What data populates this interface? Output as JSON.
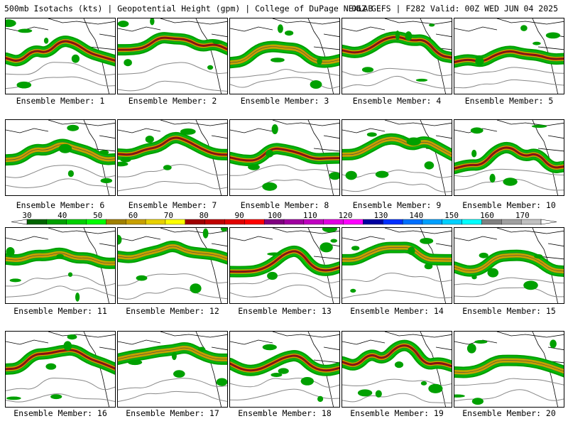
{
  "header": {
    "left": "500mb Isotachs (kts) | Geopotential Height (gpm) | College of DuPage NEXLAB",
    "right": "06Z GEFS | F282 Valid: 00Z WED JUN 04 2025"
  },
  "members": [
    "Ensemble Member: 1",
    "Ensemble Member: 2",
    "Ensemble Member: 3",
    "Ensemble Member: 4",
    "Ensemble Member: 5",
    "Ensemble Member: 6",
    "Ensemble Member: 7",
    "Ensemble Member: 8",
    "Ensemble Member: 9",
    "Ensemble Member: 10",
    "Ensemble Member: 11",
    "Ensemble Member: 12",
    "Ensemble Member: 13",
    "Ensemble Member: 14",
    "Ensemble Member: 15",
    "Ensemble Member: 16",
    "Ensemble Member: 17",
    "Ensemble Member: 18",
    "Ensemble Member: 19",
    "Ensemble Member: 20"
  ],
  "colorbar": {
    "labels": [
      "30",
      "40",
      "50",
      "60",
      "70",
      "80",
      "90",
      "100",
      "110",
      "120",
      "130",
      "140",
      "150",
      "160",
      "170"
    ],
    "colors": [
      "#006400",
      "#00a000",
      "#00d000",
      "#00ff00",
      "#a08000",
      "#c8a000",
      "#e8d000",
      "#ffff00",
      "#a00000",
      "#c00000",
      "#e00000",
      "#ff0000",
      "#800080",
      "#a000a0",
      "#c000c0",
      "#e000e0",
      "#ff00ff",
      "#0000a0",
      "#0030ff",
      "#0070ff",
      "#00a0ff",
      "#00d0ff",
      "#00ffff",
      "#808080",
      "#a0a0a0",
      "#c0c0c0"
    ]
  },
  "jet_colors": {
    "low": "#00a000",
    "mid": "#00d000",
    "core": "#c8a000",
    "max": "#a00000"
  }
}
